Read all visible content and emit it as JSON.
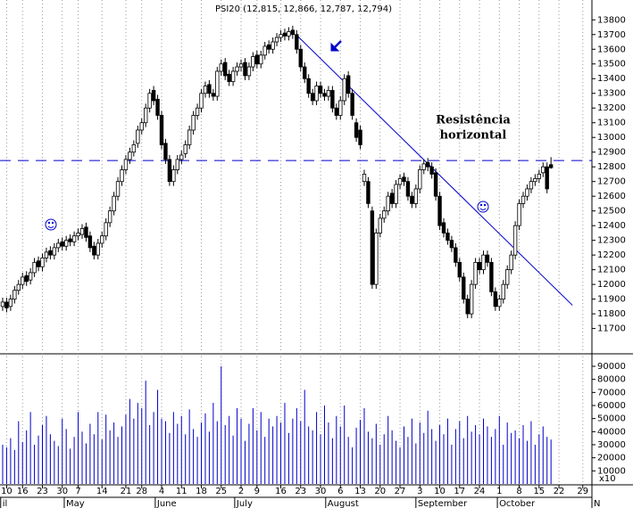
{
  "chart_data": {
    "type": "candlestick",
    "title": "PSI20 (12,815, 12,866, 12,787, 12,794)",
    "x": [
      0,
      1,
      2,
      3,
      4,
      5,
      6,
      7,
      8,
      9,
      10,
      11,
      12,
      13,
      14,
      15,
      16,
      17,
      18,
      19,
      20,
      21,
      22,
      23,
      24,
      25,
      26,
      27,
      28,
      29,
      30,
      31,
      32,
      33,
      34,
      35,
      36,
      37,
      38,
      39,
      40,
      41,
      42,
      43,
      44,
      45,
      46,
      47,
      48,
      49,
      50,
      51,
      52,
      53,
      54,
      55,
      56,
      57,
      58,
      59,
      60,
      61,
      62,
      63,
      64,
      65,
      66,
      67,
      68,
      69,
      70,
      71,
      72,
      73,
      74,
      75,
      76,
      77,
      78,
      79,
      80,
      81,
      82,
      83,
      84,
      85,
      86,
      87,
      88,
      89,
      90,
      91,
      92,
      93,
      94,
      95,
      96,
      97,
      98,
      99,
      100,
      101,
      102,
      103,
      104,
      105,
      106,
      107,
      108,
      109,
      110,
      111,
      112,
      113,
      114,
      115,
      116,
      117,
      118,
      119,
      120,
      121,
      122,
      123,
      124,
      125,
      126,
      127,
      128,
      129,
      130,
      131,
      132,
      133,
      134,
      135,
      136,
      137,
      138
    ],
    "open": [
      11850,
      11880,
      11850,
      11900,
      11960,
      12000,
      12060,
      12030,
      12080,
      12160,
      12120,
      12180,
      12230,
      12200,
      12250,
      12290,
      12260,
      12310,
      12290,
      12330,
      12340,
      12390,
      12330,
      12260,
      12200,
      12280,
      12330,
      12420,
      12500,
      12600,
      12700,
      12780,
      12850,
      12900,
      12960,
      13050,
      13100,
      13200,
      13320,
      13260,
      13150,
      12960,
      12850,
      12700,
      12780,
      12850,
      12890,
      12950,
      13050,
      13150,
      13200,
      13300,
      13360,
      13300,
      13280,
      13450,
      13510,
      13430,
      13380,
      13450,
      13480,
      13510,
      13420,
      13480,
      13560,
      13500,
      13560,
      13630,
      13600,
      13650,
      13680,
      13710,
      13690,
      13730,
      13700,
      13600,
      13480,
      13400,
      13300,
      13250,
      13350,
      13300,
      13280,
      13320,
      13200,
      13150,
      13250,
      13420,
      13300,
      13100,
      13050,
      12700,
      12700,
      12500,
      12000,
      12350,
      12450,
      12500,
      12620,
      12550,
      12680,
      12730,
      12700,
      12600,
      12550,
      12650,
      12780,
      12830,
      12800,
      12760,
      12600,
      12420,
      12350,
      12300,
      12250,
      12150,
      12050,
      11900,
      11800,
      12000,
      12150,
      12100,
      12200,
      12150,
      11950,
      11850,
      11900,
      12000,
      12100,
      12200,
      12400,
      12550,
      12600,
      12650,
      12700,
      12720,
      12760,
      12800,
      12815
    ],
    "high": [
      11910,
      11910,
      11930,
      11990,
      12030,
      12080,
      12090,
      12110,
      12180,
      12190,
      12210,
      12250,
      12260,
      12280,
      12310,
      12320,
      12330,
      12340,
      12360,
      12380,
      12410,
      12420,
      12360,
      12290,
      12310,
      12360,
      12450,
      12530,
      12630,
      12730,
      12810,
      12880,
      12930,
      12980,
      13080,
      13130,
      13230,
      13330,
      13350,
      13290,
      13180,
      12990,
      12880,
      12810,
      12880,
      12910,
      12980,
      13080,
      13180,
      13230,
      13330,
      13380,
      13390,
      13330,
      13480,
      13530,
      13540,
      13460,
      13480,
      13510,
      13530,
      13540,
      13510,
      13580,
      13590,
      13590,
      13650,
      13660,
      13680,
      13710,
      13730,
      13740,
      13750,
      13760,
      13730,
      13630,
      13510,
      13430,
      13330,
      13380,
      13380,
      13330,
      13350,
      13350,
      13230,
      13280,
      13430,
      13450,
      13330,
      13130,
      13080,
      12780,
      12730,
      12530,
      12380,
      12480,
      12530,
      12630,
      12650,
      12710,
      12750,
      12760,
      12730,
      12630,
      12680,
      12810,
      12850,
      12860,
      12830,
      12790,
      12630,
      12450,
      12380,
      12330,
      12280,
      12180,
      12080,
      11930,
      12030,
      12180,
      12180,
      12230,
      12230,
      12180,
      11980,
      11930,
      12030,
      12130,
      12230,
      12430,
      12580,
      12630,
      12680,
      12730,
      12750,
      12780,
      12830,
      12830,
      12866
    ],
    "low": [
      11820,
      11810,
      11820,
      11870,
      11930,
      11970,
      11990,
      12000,
      12050,
      12090,
      12090,
      12150,
      12170,
      12170,
      12220,
      12230,
      12230,
      12260,
      12260,
      12300,
      12310,
      12290,
      12220,
      12170,
      12170,
      12250,
      12300,
      12390,
      12470,
      12570,
      12670,
      12750,
      12820,
      12870,
      12930,
      13020,
      13070,
      13170,
      13220,
      13120,
      12920,
      12820,
      12670,
      12670,
      12750,
      12820,
      12860,
      12920,
      13020,
      13120,
      13170,
      13270,
      13270,
      13250,
      13250,
      13420,
      13390,
      13350,
      13350,
      13420,
      13450,
      13390,
      13390,
      13450,
      13470,
      13470,
      13530,
      13570,
      13570,
      13620,
      13650,
      13660,
      13660,
      13670,
      13570,
      13450,
      13370,
      13270,
      13220,
      13220,
      13270,
      13250,
      13250,
      13170,
      13120,
      13120,
      13220,
      13270,
      13120,
      12970,
      12920,
      12670,
      12520,
      11970,
      11970,
      12320,
      12420,
      12470,
      12520,
      12520,
      12650,
      12670,
      12570,
      12520,
      12520,
      12620,
      12750,
      12770,
      12720,
      12570,
      12370,
      12320,
      12270,
      12220,
      12120,
      12020,
      11870,
      11770,
      11770,
      11970,
      12070,
      12070,
      12120,
      11920,
      11820,
      11820,
      11870,
      11970,
      12070,
      12170,
      12370,
      12520,
      12570,
      12620,
      12670,
      12690,
      12730,
      12620,
      12787
    ],
    "close": [
      11880,
      11840,
      11900,
      11960,
      12000,
      12050,
      12020,
      12080,
      12150,
      12120,
      12180,
      12220,
      12200,
      12250,
      12280,
      12260,
      12300,
      12290,
      12330,
      12350,
      12380,
      12320,
      12250,
      12200,
      12280,
      12330,
      12420,
      12500,
      12600,
      12700,
      12780,
      12850,
      12900,
      12950,
      13050,
      13100,
      13200,
      13300,
      13250,
      13150,
      12950,
      12850,
      12700,
      12780,
      12850,
      12880,
      12950,
      13050,
      13150,
      13200,
      13300,
      13350,
      13300,
      13280,
      13450,
      13500,
      13420,
      13380,
      13450,
      13480,
      13500,
      13420,
      13480,
      13550,
      13500,
      13560,
      13620,
      13600,
      13650,
      13680,
      13700,
      13690,
      13720,
      13700,
      13600,
      13480,
      13400,
      13300,
      13250,
      13350,
      13300,
      13280,
      13320,
      13200,
      13150,
      13250,
      13400,
      13300,
      13150,
      13000,
      12950,
      12750,
      12550,
      12000,
      12350,
      12450,
      12500,
      12600,
      12550,
      12680,
      12720,
      12700,
      12600,
      12550,
      12650,
      12780,
      12820,
      12800,
      12750,
      12600,
      12400,
      12350,
      12300,
      12250,
      12150,
      12050,
      11900,
      11800,
      12000,
      12150,
      12100,
      12200,
      12150,
      11950,
      11850,
      11900,
      12000,
      12100,
      12200,
      12400,
      12550,
      12600,
      12650,
      12700,
      12720,
      12750,
      12800,
      12650,
      12794
    ],
    "volume": [
      30000,
      28000,
      35000,
      26000,
      48000,
      32000,
      41000,
      55000,
      30000,
      37000,
      45000,
      52000,
      38000,
      33000,
      29000,
      50000,
      42000,
      27000,
      36000,
      55000,
      40000,
      31000,
      46000,
      38000,
      55000,
      34000,
      53000,
      41000,
      47000,
      36000,
      44000,
      53000,
      65000,
      50000,
      62000,
      58000,
      79000,
      45000,
      55000,
      72000,
      50000,
      48000,
      39000,
      55000,
      46000,
      52000,
      38000,
      57000,
      42000,
      36000,
      47000,
      54000,
      40000,
      62000,
      48000,
      90000,
      45000,
      52000,
      37000,
      58000,
      50000,
      33000,
      46000,
      58000,
      41000,
      55000,
      36000,
      50000,
      44000,
      52000,
      47000,
      62000,
      39000,
      50000,
      58000,
      48000,
      72000,
      44000,
      41000,
      55000,
      38000,
      60000,
      47000,
      35000,
      52000,
      44000,
      60000,
      36000,
      28000,
      43000,
      49000,
      58000,
      40000,
      35000,
      46000,
      30000,
      38000,
      52000,
      41000,
      33000,
      28000,
      44000,
      36000,
      50000,
      31000,
      47000,
      39000,
      56000,
      42000,
      33000,
      45000,
      38000,
      50000,
      30000,
      42000,
      48000,
      35000,
      52000,
      40000,
      45000,
      38000,
      50000,
      44000,
      36000,
      42000,
      52000,
      30000,
      47000,
      39000,
      41000,
      35000,
      45000,
      33000,
      48000,
      30000,
      38000,
      44000,
      36000,
      34000
    ],
    "up_color": "#ffffff",
    "down_color": "#000000",
    "volume_color": "#0000cc",
    "xlim": [
      -0.67,
      148.3
    ],
    "xticks": [
      {
        "value": 1,
        "label": "10"
      },
      {
        "value": 5,
        "label": "16"
      },
      {
        "value": 10,
        "label": "23"
      },
      {
        "value": 15,
        "label": "30"
      },
      {
        "value": 19,
        "label": "7"
      },
      {
        "value": 25,
        "label": "14"
      },
      {
        "value": 31,
        "label": "21"
      },
      {
        "value": 35,
        "label": "28"
      },
      {
        "value": 40,
        "label": "4"
      },
      {
        "value": 45,
        "label": "11"
      },
      {
        "value": 50,
        "label": "18"
      },
      {
        "value": 55,
        "label": "25"
      },
      {
        "value": 60,
        "label": "2"
      },
      {
        "value": 64,
        "label": "9"
      },
      {
        "value": 70,
        "label": "16"
      },
      {
        "value": 75,
        "label": "23"
      },
      {
        "value": 80,
        "label": "30"
      },
      {
        "value": 85,
        "label": "6"
      },
      {
        "value": 90,
        "label": "13"
      },
      {
        "value": 95,
        "label": "20"
      },
      {
        "value": 100,
        "label": "27"
      },
      {
        "value": 105,
        "label": "3"
      },
      {
        "value": 110,
        "label": "10"
      },
      {
        "value": 115,
        "label": "17"
      },
      {
        "value": 120,
        "label": "24"
      },
      {
        "value": 125,
        "label": "1"
      },
      {
        "value": 130,
        "label": "8"
      },
      {
        "value": 135,
        "label": "15"
      },
      {
        "value": 140,
        "label": "22"
      },
      {
        "value": 146,
        "label": "29"
      }
    ],
    "month_labels": [
      {
        "value": -0.5,
        "label": "il"
      },
      {
        "value": 15.5,
        "label": "May"
      },
      {
        "value": 38.4,
        "label": "June"
      },
      {
        "value": 58.4,
        "label": "July"
      },
      {
        "value": 81.3,
        "label": "August"
      },
      {
        "value": 104,
        "label": "September"
      },
      {
        "value": 124.5,
        "label": "October"
      },
      {
        "value": 148.3,
        "label": "N"
      }
    ],
    "grid": true,
    "ylim": [
      11540,
      13935
    ],
    "yticks": [
      11700,
      11800,
      11900,
      12000,
      12100,
      12200,
      12300,
      12400,
      12500,
      12600,
      12700,
      12800,
      12900,
      13000,
      13100,
      13200,
      13300,
      13400,
      13500,
      13600,
      13700,
      13800
    ],
    "volume_ylim": [
      0,
      97500
    ],
    "volume_yticks": [
      10000,
      20000,
      30000,
      40000,
      50000,
      60000,
      70000,
      80000,
      90000
    ],
    "volume_axis_note": "x10",
    "annotation": [
      "Resistência",
      "horizontal"
    ],
    "annotation_color": "#0000cc",
    "resistance_level": 12843,
    "trendline": {
      "x": [
        74.2,
        143.4
      ],
      "y": [
        13690,
        11858
      ]
    }
  }
}
